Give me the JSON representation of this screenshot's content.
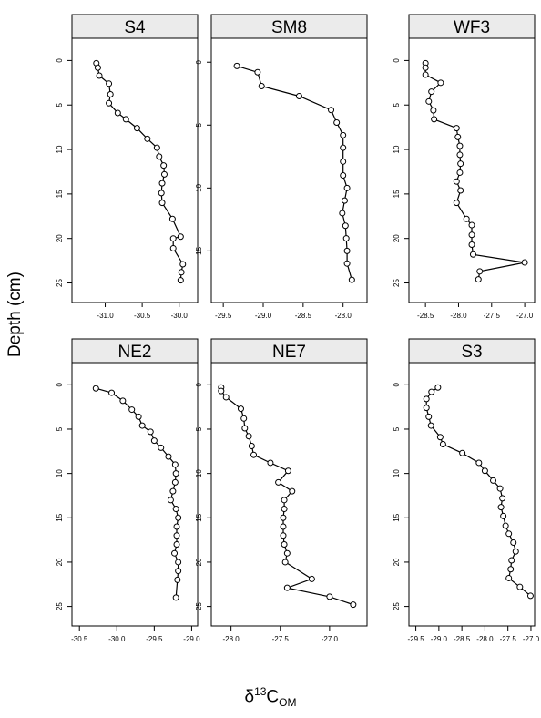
{
  "figure": {
    "ylabel": "Depth (cm)",
    "xlabel_parts": {
      "base": "δ",
      "sup": "13",
      "main": "C",
      "sub": "OM"
    }
  },
  "chart_data": [
    {
      "type": "line",
      "title": "S4",
      "xticks": [
        -31.0,
        -30.5,
        -30.0
      ],
      "xtick_labels": [
        "-31.0",
        "-30.5",
        "-30.0"
      ],
      "yticks": [
        0,
        5,
        10,
        15,
        20,
        25
      ],
      "xlim": [
        -31.45,
        -29.75
      ],
      "ylim": [
        -2.5,
        27.2
      ],
      "y_reversed": true,
      "x": [
        -31.12,
        -31.1,
        -31.08,
        -30.95,
        -30.93,
        -30.95,
        -30.83,
        -30.72,
        -30.57,
        -30.43,
        -30.3,
        -30.27,
        -30.21,
        -30.2,
        -30.23,
        -30.24,
        -30.23,
        -30.09,
        -29.98,
        -30.08,
        -30.08,
        -29.95,
        -29.97,
        -29.98
      ],
      "y": [
        0.3,
        0.8,
        1.7,
        2.6,
        3.8,
        4.8,
        5.9,
        6.6,
        7.6,
        8.8,
        9.8,
        10.8,
        11.8,
        12.8,
        13.8,
        14.9,
        16.0,
        17.8,
        19.8,
        20.0,
        21.1,
        22.9,
        23.8,
        24.7
      ]
    },
    {
      "type": "line",
      "title": "SM8",
      "xticks": [
        -29.5,
        -29.0,
        -28.5,
        -28.0
      ],
      "xtick_labels": [
        "-29.5",
        "-29.0",
        "-28.5",
        "-28.0"
      ],
      "yticks": [
        0,
        5,
        10,
        15
      ],
      "xlim": [
        -29.65,
        -27.7
      ],
      "ylim": [
        -1.9,
        19.1
      ],
      "y_reversed": true,
      "x": [
        -29.33,
        -29.07,
        -29.02,
        -28.55,
        -28.15,
        -28.08,
        -28.0,
        -28.0,
        -28.0,
        -28.0,
        -27.95,
        -27.98,
        -28.01,
        -27.97,
        -27.96,
        -27.95,
        -27.95,
        -27.89
      ],
      "y": [
        0.3,
        0.8,
        1.9,
        2.7,
        3.8,
        4.8,
        5.8,
        6.8,
        7.9,
        9.0,
        10.0,
        11.0,
        12.0,
        13.0,
        14.0,
        15.0,
        16.0,
        17.3
      ]
    },
    {
      "type": "line",
      "title": "WF3",
      "xticks": [
        -28.5,
        -28.0,
        -27.5,
        -27.0
      ],
      "xtick_labels": [
        "-28.5",
        "-28.0",
        "-27.5",
        "-27.0"
      ],
      "yticks": [
        0,
        5,
        10,
        15,
        20,
        25
      ],
      "xlim": [
        -28.75,
        -26.85
      ],
      "ylim": [
        -2.5,
        27.2
      ],
      "y_reversed": true,
      "x": [
        -28.5,
        -28.5,
        -28.5,
        -28.27,
        -28.41,
        -28.45,
        -28.38,
        -28.37,
        -28.03,
        -28.01,
        -27.98,
        -27.98,
        -27.97,
        -27.98,
        -28.03,
        -27.97,
        -28.03,
        -27.88,
        -27.8,
        -27.8,
        -27.8,
        -27.78,
        -27.0,
        -27.68,
        -27.7
      ],
      "y": [
        0.3,
        0.8,
        1.6,
        2.5,
        3.5,
        4.6,
        5.6,
        6.6,
        7.6,
        8.6,
        9.6,
        10.6,
        11.6,
        12.6,
        13.6,
        14.6,
        16.0,
        17.8,
        18.5,
        19.6,
        20.7,
        21.8,
        22.7,
        23.7,
        24.6
      ]
    },
    {
      "type": "line",
      "title": "NE2",
      "xticks": [
        -30.5,
        -30.0,
        -29.5,
        -29.0
      ],
      "xtick_labels": [
        "-30.5",
        "-30.0",
        "-29.5",
        "-29.0"
      ],
      "yticks": [
        0,
        5,
        10,
        15,
        20,
        25
      ],
      "xlim": [
        -30.6,
        -28.92
      ],
      "ylim": [
        -2.5,
        27.2
      ],
      "y_reversed": true,
      "x": [
        -30.28,
        -30.07,
        -29.92,
        -29.8,
        -29.71,
        -29.66,
        -29.55,
        -29.5,
        -29.41,
        -29.31,
        -29.22,
        -29.21,
        -29.22,
        -29.25,
        -29.28,
        -29.21,
        -29.18,
        -29.2,
        -29.2,
        -29.2,
        -29.23,
        -29.18,
        -29.18,
        -29.19,
        -29.21
      ],
      "y": [
        0.4,
        0.9,
        1.8,
        2.8,
        3.6,
        4.6,
        5.3,
        6.3,
        7.1,
        8.1,
        9.0,
        10.0,
        11.0,
        12.0,
        13.0,
        14.0,
        15.0,
        16.0,
        17.0,
        18.0,
        19.0,
        20.0,
        21.0,
        22.0,
        24.0
      ]
    },
    {
      "type": "line",
      "title": "NE7",
      "xticks": [
        -28.0,
        -27.5,
        -27.0
      ],
      "xtick_labels": [
        "-28.0",
        "-27.5",
        "-27.0"
      ],
      "yticks": [
        0,
        5,
        10,
        15,
        20,
        25
      ],
      "xlim": [
        -28.2,
        -26.62
      ],
      "ylim": [
        -2.5,
        27.2
      ],
      "y_reversed": true,
      "x": [
        -28.1,
        -28.1,
        -28.05,
        -27.9,
        -27.87,
        -27.86,
        -27.82,
        -27.79,
        -27.77,
        -27.6,
        -27.42,
        -27.52,
        -27.38,
        -27.46,
        -27.46,
        -27.47,
        -27.47,
        -27.47,
        -27.46,
        -27.43,
        -27.45,
        -27.18,
        -27.43,
        -27.0,
        -26.76
      ],
      "y": [
        0.3,
        0.7,
        1.4,
        2.7,
        3.8,
        4.9,
        5.8,
        6.9,
        7.9,
        8.8,
        9.7,
        11.0,
        12.0,
        13.0,
        14.0,
        15.0,
        16.0,
        17.0,
        18.0,
        19.0,
        20.0,
        21.9,
        22.9,
        23.9,
        24.8
      ]
    },
    {
      "type": "line",
      "title": "S3",
      "xticks": [
        -29.5,
        -29.0,
        -28.5,
        -28.0,
        -27.5,
        -27.0
      ],
      "xtick_labels": [
        "-29.5",
        "-29.0",
        "-28.5",
        "-28.0",
        "-27.5",
        "-27.0"
      ],
      "yticks": [
        0,
        5,
        10,
        15,
        20,
        25
      ],
      "xlim": [
        -29.65,
        -26.92
      ],
      "ylim": [
        -2.5,
        27.2
      ],
      "y_reversed": true,
      "x": [
        -29.02,
        -29.16,
        -29.27,
        -29.27,
        -29.22,
        -29.17,
        -28.97,
        -28.91,
        -28.49,
        -28.13,
        -28.0,
        -27.82,
        -27.67,
        -27.62,
        -27.65,
        -27.6,
        -27.55,
        -27.48,
        -27.38,
        -27.33,
        -27.42,
        -27.44,
        -27.48,
        -27.24,
        -27.01
      ],
      "y": [
        0.3,
        0.8,
        1.6,
        2.6,
        3.6,
        4.6,
        5.9,
        6.7,
        7.7,
        8.8,
        9.7,
        10.8,
        11.7,
        12.8,
        13.8,
        14.8,
        15.9,
        16.8,
        17.8,
        18.8,
        19.8,
        20.8,
        21.8,
        22.8,
        23.8
      ]
    }
  ]
}
